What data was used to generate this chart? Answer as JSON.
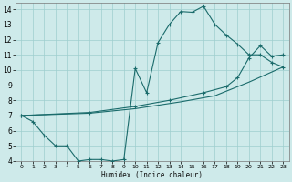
{
  "xlabel": "Humidex (Indice chaleur)",
  "ylabel": "",
  "bg_color": "#ceeaea",
  "grid_color": "#9ecece",
  "line_color": "#1a6b6b",
  "xlim": [
    -0.5,
    23.5
  ],
  "ylim": [
    4,
    14.4
  ],
  "xticks": [
    0,
    1,
    2,
    3,
    4,
    5,
    6,
    7,
    8,
    9,
    10,
    11,
    12,
    13,
    14,
    15,
    16,
    17,
    18,
    19,
    20,
    21,
    22,
    23
  ],
  "yticks": [
    4,
    5,
    6,
    7,
    8,
    9,
    10,
    11,
    12,
    13,
    14
  ],
  "line1_x": [
    0,
    1,
    2,
    3,
    4,
    5,
    6,
    7,
    8,
    9,
    10,
    11,
    12,
    13,
    14,
    15,
    16,
    17,
    18,
    19,
    20,
    21,
    22,
    23
  ],
  "line1_y": [
    7.0,
    6.6,
    5.7,
    5.0,
    5.0,
    4.0,
    4.1,
    4.1,
    4.0,
    4.1,
    10.1,
    8.5,
    11.8,
    13.0,
    13.85,
    13.8,
    14.2,
    13.0,
    12.3,
    11.7,
    11.0,
    11.0,
    10.5,
    10.2
  ],
  "line2_x": [
    0,
    6,
    10,
    13,
    16,
    18,
    19,
    20,
    21,
    22,
    23
  ],
  "line2_y": [
    7.0,
    7.2,
    7.6,
    8.0,
    8.5,
    8.9,
    9.5,
    10.8,
    11.6,
    10.9,
    11.0
  ],
  "line3_x": [
    0,
    6,
    10,
    14,
    17,
    20,
    23
  ],
  "line3_y": [
    7.0,
    7.15,
    7.45,
    7.9,
    8.3,
    9.2,
    10.2
  ]
}
